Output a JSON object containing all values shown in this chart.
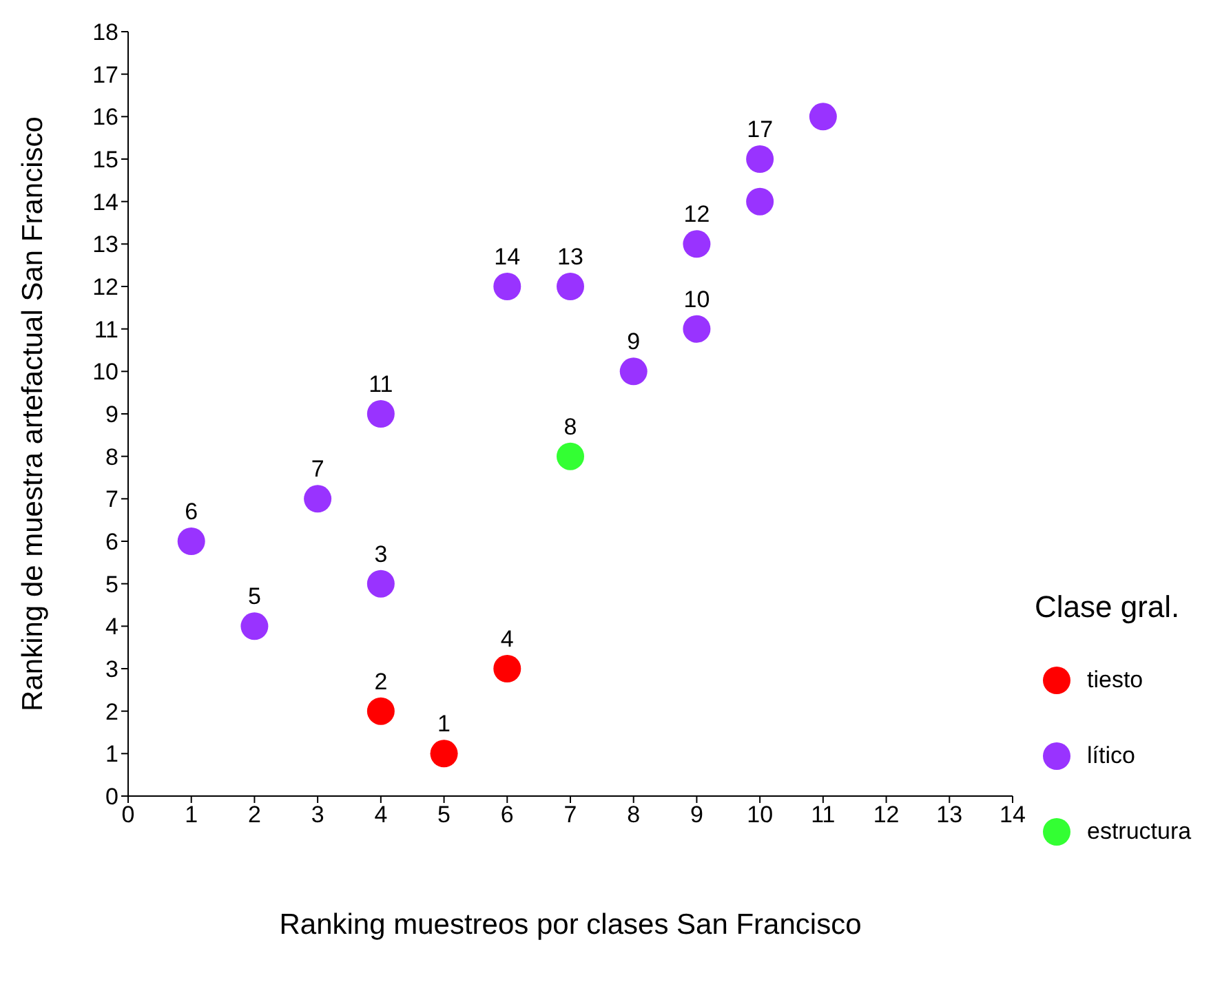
{
  "chart_data": {
    "type": "scatter",
    "xlabel": "Ranking muestreos por clases San Francisco",
    "ylabel": "Ranking de muestra artefactual San Francisco",
    "legend_title": "Clase gral.",
    "legend": "right",
    "marker": "circle",
    "grid": false,
    "xlim": [
      0,
      14
    ],
    "xticks": [
      0,
      1,
      2,
      3,
      4,
      5,
      6,
      7,
      8,
      9,
      10,
      11,
      12,
      13,
      14
    ],
    "ylim": [
      0,
      18
    ],
    "yticks": [
      0,
      1,
      2,
      3,
      4,
      5,
      6,
      7,
      8,
      9,
      10,
      11,
      12,
      13,
      14,
      15,
      16,
      17,
      18
    ],
    "series": [
      {
        "name": "tiesto",
        "color": "#ff0000",
        "x": [
          5,
          4,
          6
        ],
        "values": [
          1,
          2,
          3
        ]
      },
      {
        "name": "lítico",
        "color": "#9933ff",
        "x": [
          4,
          2,
          1,
          3,
          4,
          6,
          7,
          8,
          9,
          9,
          10,
          10,
          11
        ],
        "values": [
          5,
          4,
          6,
          7,
          9,
          12,
          12,
          10,
          11,
          13,
          14,
          15,
          16
        ]
      },
      {
        "name": "estructura",
        "color": "#33ff33",
        "x": [
          7
        ],
        "values": [
          8
        ]
      }
    ],
    "annotations": [
      {
        "text": "1",
        "x": 5,
        "y": 1
      },
      {
        "text": "2",
        "x": 4,
        "y": 2
      },
      {
        "text": "4",
        "x": 6,
        "y": 3
      },
      {
        "text": "3",
        "x": 4,
        "y": 5
      },
      {
        "text": "5",
        "x": 2,
        "y": 4
      },
      {
        "text": "6",
        "x": 1,
        "y": 6
      },
      {
        "text": "7",
        "x": 3,
        "y": 7
      },
      {
        "text": "11",
        "x": 4,
        "y": 9
      },
      {
        "text": "14",
        "x": 6,
        "y": 12
      },
      {
        "text": "13",
        "x": 7,
        "y": 12
      },
      {
        "text": "9",
        "x": 8,
        "y": 10
      },
      {
        "text": "10",
        "x": 9,
        "y": 11
      },
      {
        "text": "12",
        "x": 9,
        "y": 13
      },
      {
        "text": "17",
        "x": 10,
        "y": 15
      },
      {
        "text": "8",
        "x": 7,
        "y": 8
      }
    ]
  }
}
